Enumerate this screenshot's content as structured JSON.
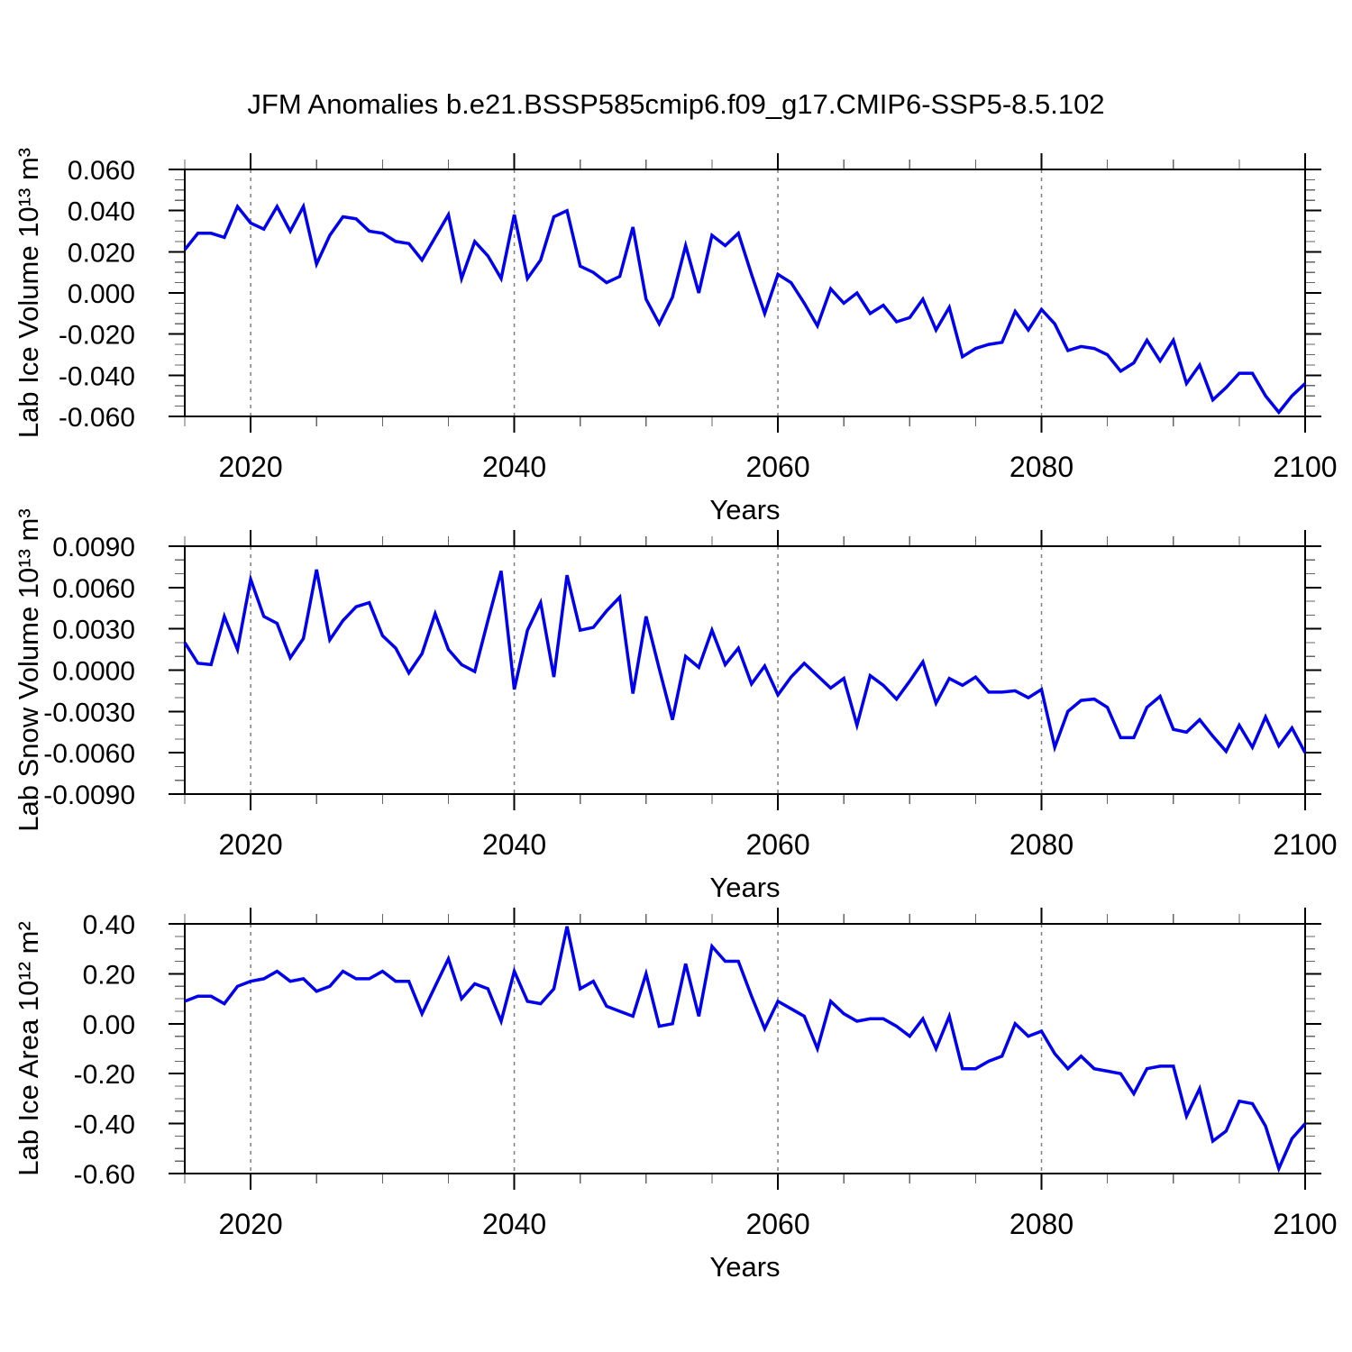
{
  "figure_title": "JFM Anomalies b.e21.BSSP585cmip6.f09_g17.CMIP6-SSP5-8.5.102",
  "colors": {
    "line": "#0000ee",
    "grid": "#7f7f7f",
    "axis": "#000000",
    "minor_tick": "#666666"
  },
  "chart_data": [
    {
      "type": "line",
      "ylabel": "Lab Ice Volume 10¹³ m³",
      "xlabel": "Years",
      "x_start": 2015,
      "x_step": 1,
      "xlim": [
        2015,
        2100
      ],
      "ylim": [
        -0.06,
        0.06
      ],
      "yticks": {
        "values": [
          0.06,
          0.04,
          0.02,
          0.0,
          -0.02,
          -0.04,
          -0.06
        ],
        "labels": [
          "0.060",
          "0.040",
          "0.020",
          "0.000",
          "-0.020",
          "-0.040",
          "-0.060"
        ]
      },
      "y_minor_step": 0.005,
      "xticks": {
        "values": [
          2020,
          2040,
          2060,
          2080,
          2100
        ],
        "labels": [
          "2020",
          "2040",
          "2060",
          "2080",
          "2100"
        ]
      },
      "x_minor_step": 5,
      "gridline_years": [
        2020,
        2040,
        2060,
        2080
      ],
      "series": [
        {
          "name": "Lab Ice Volume anomaly",
          "values": [
            0.021,
            0.029,
            0.029,
            0.027,
            0.042,
            0.034,
            0.031,
            0.042,
            0.03,
            0.042,
            0.014,
            0.028,
            0.037,
            0.036,
            0.03,
            0.029,
            0.025,
            0.024,
            0.016,
            0.027,
            0.038,
            0.007,
            0.025,
            0.018,
            0.007,
            0.038,
            0.007,
            0.016,
            0.037,
            0.04,
            0.013,
            0.01,
            0.005,
            0.008,
            0.032,
            -0.003,
            -0.015,
            -0.002,
            0.023,
            0.0,
            0.028,
            0.023,
            0.029,
            0.009,
            -0.01,
            0.009,
            0.005,
            -0.005,
            -0.016,
            0.002,
            -0.005,
            0.0,
            -0.01,
            -0.006,
            -0.014,
            -0.012,
            -0.003,
            -0.018,
            -0.007,
            -0.031,
            -0.027,
            -0.025,
            -0.024,
            -0.009,
            -0.018,
            -0.008,
            -0.015,
            -0.028,
            -0.026,
            -0.027,
            -0.03,
            -0.038,
            -0.034,
            -0.023,
            -0.033,
            -0.023,
            -0.044,
            -0.035,
            -0.052,
            -0.046,
            -0.039,
            -0.039,
            -0.05,
            -0.058,
            -0.05,
            -0.044
          ]
        }
      ]
    },
    {
      "type": "line",
      "ylabel": "Lab Snow Volume 10¹³ m³",
      "xlabel": "Years",
      "x_start": 2015,
      "x_step": 1,
      "xlim": [
        2015,
        2100
      ],
      "ylim": [
        -0.009,
        0.009
      ],
      "yticks": {
        "values": [
          0.009,
          0.006,
          0.003,
          0.0,
          -0.003,
          -0.006,
          -0.009
        ],
        "labels": [
          "0.0090",
          "0.0060",
          "0.0030",
          "0.0000",
          "-0.0030",
          "-0.0060",
          "-0.0090"
        ]
      },
      "y_minor_step": 0.001,
      "xticks": {
        "values": [
          2020,
          2040,
          2060,
          2080,
          2100
        ],
        "labels": [
          "2020",
          "2040",
          "2060",
          "2080",
          "2100"
        ]
      },
      "x_minor_step": 5,
      "gridline_years": [
        2020,
        2040,
        2060,
        2080
      ],
      "series": [
        {
          "name": "Lab Snow Volume anomaly",
          "values": [
            0.002,
            0.0005,
            0.0004,
            0.0039,
            0.0015,
            0.0066,
            0.0039,
            0.0034,
            0.0009,
            0.0023,
            0.0073,
            0.0022,
            0.0036,
            0.0046,
            0.0049,
            0.0025,
            0.0016,
            -0.0002,
            0.0012,
            0.0041,
            0.0015,
            0.0004,
            -0.0001,
            0.0036,
            0.0072,
            -0.0014,
            0.0029,
            0.0049,
            -0.0005,
            0.0069,
            0.0029,
            0.0031,
            0.0043,
            0.0053,
            -0.0017,
            0.0039,
            0.0001,
            -0.0036,
            0.001,
            0.0002,
            0.0029,
            0.0004,
            0.0016,
            -0.001,
            0.0003,
            -0.0018,
            -0.0005,
            0.0005,
            -0.0004,
            -0.0013,
            -0.0006,
            -0.004,
            -0.0004,
            -0.0011,
            -0.0021,
            -0.0008,
            0.0006,
            -0.0024,
            -0.0006,
            -0.0011,
            -0.0005,
            -0.0016,
            -0.0016,
            -0.0015,
            -0.002,
            -0.0014,
            -0.0056,
            -0.003,
            -0.0022,
            -0.0021,
            -0.0027,
            -0.0049,
            -0.0049,
            -0.0027,
            -0.0019,
            -0.0043,
            -0.0045,
            -0.0036,
            -0.0048,
            -0.0059,
            -0.004,
            -0.0056,
            -0.0034,
            -0.0055,
            -0.0042,
            -0.006
          ]
        }
      ]
    },
    {
      "type": "line",
      "ylabel": "Lab Ice Area 10¹² m²",
      "xlabel": "Years",
      "x_start": 2015,
      "x_step": 1,
      "xlim": [
        2015,
        2100
      ],
      "ylim": [
        -0.6,
        0.4
      ],
      "yticks": {
        "values": [
          0.4,
          0.2,
          0.0,
          -0.2,
          -0.4,
          -0.6
        ],
        "labels": [
          "0.40",
          "0.20",
          "0.00",
          "-0.20",
          "-0.40",
          "-0.60"
        ]
      },
      "y_minor_step": 0.05,
      "xticks": {
        "values": [
          2020,
          2040,
          2060,
          2080,
          2100
        ],
        "labels": [
          "2020",
          "2040",
          "2060",
          "2080",
          "2100"
        ]
      },
      "x_minor_step": 5,
      "gridline_years": [
        2020,
        2040,
        2060,
        2080
      ],
      "series": [
        {
          "name": "Lab Ice Area anomaly",
          "values": [
            0.09,
            0.11,
            0.11,
            0.08,
            0.15,
            0.17,
            0.18,
            0.21,
            0.17,
            0.18,
            0.13,
            0.15,
            0.21,
            0.18,
            0.18,
            0.21,
            0.17,
            0.17,
            0.04,
            0.15,
            0.26,
            0.1,
            0.16,
            0.14,
            0.01,
            0.21,
            0.09,
            0.08,
            0.14,
            0.39,
            0.14,
            0.17,
            0.07,
            0.05,
            0.03,
            0.2,
            -0.01,
            0.0,
            0.24,
            0.03,
            0.31,
            0.25,
            0.25,
            0.11,
            -0.02,
            0.09,
            0.06,
            0.03,
            -0.1,
            0.09,
            0.04,
            0.01,
            0.02,
            0.02,
            -0.01,
            -0.05,
            0.02,
            -0.1,
            0.03,
            -0.18,
            -0.18,
            -0.15,
            -0.13,
            0.0,
            -0.05,
            -0.03,
            -0.12,
            -0.18,
            -0.13,
            -0.18,
            -0.19,
            -0.2,
            -0.28,
            -0.18,
            -0.17,
            -0.17,
            -0.37,
            -0.26,
            -0.47,
            -0.43,
            -0.31,
            -0.32,
            -0.41,
            -0.58,
            -0.46,
            -0.4
          ]
        }
      ]
    }
  ]
}
